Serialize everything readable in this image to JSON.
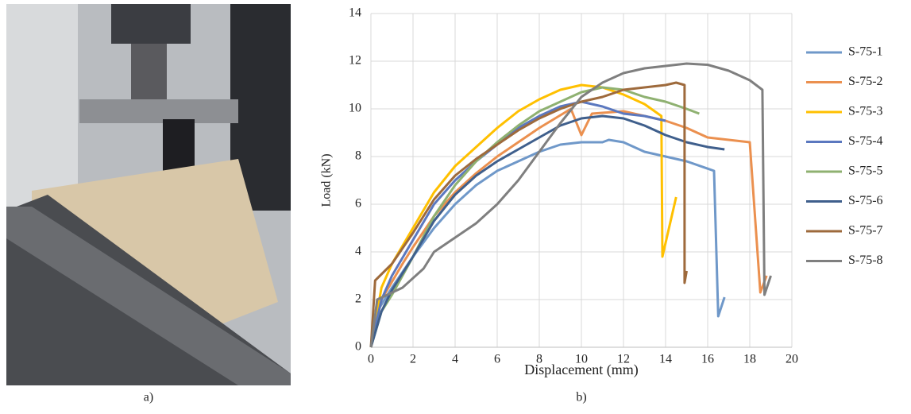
{
  "captions": {
    "left": "a)",
    "right": "b)"
  },
  "chart_data": {
    "type": "line",
    "x_label": "Displacement (mm)",
    "y_label": "Load (kN)",
    "xlim": [
      0,
      20
    ],
    "xticks": [
      0,
      2,
      4,
      6,
      8,
      10,
      12,
      14,
      16,
      18,
      20
    ],
    "ylim": [
      0,
      14
    ],
    "yticks": [
      0,
      2,
      4,
      6,
      8,
      10,
      12,
      14
    ],
    "grid": true,
    "legend": "right",
    "series": [
      {
        "name": "S-75-1",
        "color": "#6f98c9",
        "x": [
          0,
          0.3,
          1,
          2,
          3,
          4,
          5,
          6,
          7,
          8,
          9,
          10,
          11,
          11.3,
          12,
          13,
          14,
          15,
          16.3,
          16.5,
          16.8
        ],
        "values": [
          0,
          1.5,
          2.5,
          3.8,
          5,
          6,
          6.8,
          7.4,
          7.8,
          8.2,
          8.5,
          8.6,
          8.6,
          8.7,
          8.6,
          8.2,
          8,
          7.8,
          7.4,
          1.3,
          2.1
        ]
      },
      {
        "name": "S-75-2",
        "color": "#eb904f",
        "x": [
          0,
          0.5,
          1.5,
          2,
          3,
          4,
          5,
          6,
          7,
          8,
          9.5,
          10,
          10.5,
          12,
          13,
          14,
          15,
          16,
          18,
          18.5,
          18.8
        ],
        "values": [
          0,
          2,
          3.5,
          4.2,
          5.5,
          6.5,
          7.3,
          8,
          8.6,
          9.2,
          10,
          8.9,
          9.8,
          9.9,
          9.7,
          9.5,
          9.2,
          8.8,
          8.6,
          2.3,
          3
        ]
      },
      {
        "name": "S-75-3",
        "color": "#ffc000",
        "x": [
          0,
          0.5,
          1,
          2,
          3,
          4,
          5,
          6,
          7,
          8,
          9,
          10,
          11,
          12,
          13,
          13.8,
          13.85,
          14.5
        ],
        "values": [
          0,
          2.5,
          3.5,
          5,
          6.5,
          7.6,
          8.4,
          9.2,
          9.9,
          10.4,
          10.8,
          11,
          10.9,
          10.6,
          10.2,
          9.7,
          3.8,
          6.3
        ]
      },
      {
        "name": "S-75-4",
        "color": "#5b78bf",
        "x": [
          0,
          0.5,
          1,
          2,
          3,
          4,
          5,
          6,
          7,
          8,
          9,
          10,
          11,
          12,
          13,
          14
        ],
        "values": [
          0,
          2,
          3,
          4.5,
          6,
          7,
          7.8,
          8.5,
          9.2,
          9.7,
          10.1,
          10.3,
          10.1,
          9.8,
          9.7,
          9.5
        ]
      },
      {
        "name": "S-75-5",
        "color": "#8fb171",
        "x": [
          0,
          0.5,
          1,
          2,
          3,
          4,
          5,
          6,
          7,
          8,
          9,
          10,
          11,
          12,
          13,
          14,
          15,
          15.6
        ],
        "values": [
          0,
          1.5,
          2.2,
          3.8,
          5.5,
          6.8,
          7.8,
          8.6,
          9.3,
          9.9,
          10.3,
          10.7,
          10.9,
          10.8,
          10.5,
          10.3,
          10,
          9.8
        ]
      },
      {
        "name": "S-75-6",
        "color": "#3f5f8c",
        "x": [
          0,
          0.5,
          1,
          2,
          3,
          4,
          5,
          6,
          7,
          8,
          9,
          10,
          11,
          12,
          13,
          14,
          15,
          16,
          16.8
        ],
        "values": [
          0,
          1.5,
          2.4,
          3.8,
          5.3,
          6.4,
          7.2,
          7.8,
          8.3,
          8.8,
          9.3,
          9.6,
          9.7,
          9.6,
          9.3,
          8.9,
          8.6,
          8.4,
          8.3
        ]
      },
      {
        "name": "S-75-7",
        "color": "#9e6a3c",
        "x": [
          0,
          0.2,
          1,
          2,
          3,
          4,
          5,
          6,
          7,
          8,
          9,
          10,
          11,
          12,
          13,
          14,
          14.5,
          14.9,
          14.9,
          15
        ],
        "values": [
          0,
          2.8,
          3.5,
          4.8,
          6.2,
          7.2,
          7.9,
          8.5,
          9.1,
          9.6,
          10,
          10.3,
          10.5,
          10.8,
          10.9,
          11,
          11.1,
          11,
          2.7,
          3.2
        ]
      },
      {
        "name": "S-75-8",
        "color": "#7f7f7f",
        "x": [
          0,
          0.3,
          1.5,
          2.5,
          3,
          4,
          5,
          6,
          7,
          8,
          9,
          10,
          11,
          12,
          13,
          14,
          15,
          16,
          17,
          18,
          18.6,
          18.7,
          19
        ],
        "values": [
          0,
          2,
          2.5,
          3.3,
          4,
          4.6,
          5.2,
          6,
          7,
          8.2,
          9.4,
          10.5,
          11.1,
          11.5,
          11.7,
          11.8,
          11.9,
          11.85,
          11.6,
          11.2,
          10.8,
          2.2,
          3
        ]
      }
    ]
  }
}
